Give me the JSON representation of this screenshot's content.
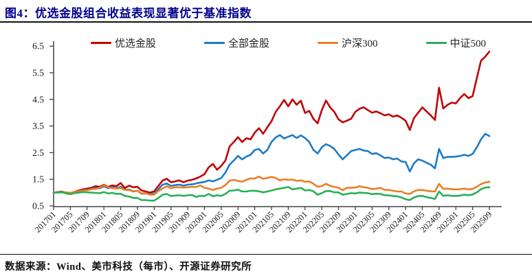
{
  "title": "图4：优选金股组合收益表现显著优于基准指数",
  "footer": {
    "source_label": "数据来源：Wind、美市科技（每市）、开源证券研究所"
  },
  "chart_data": {
    "type": "line",
    "title": "",
    "xlabel": "",
    "ylabel": "",
    "grid": false,
    "legend_position": "top",
    "ylim": [
      0.5,
      6.5
    ],
    "y_ticks": [
      0.5,
      1.5,
      2.5,
      3.5,
      4.5,
      5.5,
      6.5
    ],
    "x_start": "201701",
    "x_interval_months": 1,
    "x_tick_every": 4,
    "x_tick_labels": [
      "201701",
      "201705",
      "201709",
      "201801",
      "201805",
      "201809",
      "201901",
      "201905",
      "201909",
      "202001",
      "202005",
      "202009",
      "202101",
      "202105",
      "202109",
      "202201",
      "202205",
      "202209",
      "202301",
      "202305",
      "202309",
      "202401",
      "202405",
      "202409",
      "202501",
      "202505",
      "202509"
    ],
    "series": [
      {
        "name": "优选金股",
        "color": "#C00000",
        "values": [
          1.0,
          1.02,
          1.04,
          0.98,
          0.95,
          1.03,
          1.08,
          1.12,
          1.15,
          1.18,
          1.24,
          1.22,
          1.3,
          1.22,
          1.27,
          1.24,
          1.36,
          1.17,
          1.26,
          1.2,
          1.22,
          1.08,
          1.04,
          1.0,
          1.05,
          1.25,
          1.45,
          1.52,
          1.39,
          1.42,
          1.46,
          1.39,
          1.45,
          1.48,
          1.53,
          1.6,
          1.69,
          1.95,
          2.08,
          1.86,
          2.0,
          2.2,
          2.73,
          2.9,
          3.08,
          2.9,
          3.04,
          3.0,
          3.25,
          3.42,
          3.21,
          3.45,
          3.68,
          4.03,
          4.24,
          4.48,
          4.24,
          4.5,
          4.3,
          4.45,
          3.99,
          4.07,
          3.77,
          3.6,
          4.1,
          4.46,
          4.2,
          4.03,
          3.75,
          3.64,
          3.7,
          3.77,
          4.03,
          4.15,
          4.2,
          4.1,
          4.0,
          4.05,
          3.98,
          3.9,
          3.94,
          3.85,
          3.9,
          3.81,
          3.7,
          3.35,
          3.8,
          4.0,
          4.2,
          4.05,
          3.9,
          3.73,
          4.94,
          4.16,
          4.29,
          4.38,
          4.35,
          4.55,
          4.7,
          4.55,
          4.62,
          5.3,
          5.95,
          6.1,
          6.3
        ]
      },
      {
        "name": "全部金股",
        "color": "#1B7AC6",
        "values": [
          1.0,
          1.01,
          1.03,
          0.97,
          0.94,
          1.01,
          1.05,
          1.08,
          1.1,
          1.13,
          1.18,
          1.16,
          1.24,
          1.17,
          1.2,
          1.16,
          1.22,
          1.1,
          1.12,
          1.05,
          1.07,
          0.96,
          0.97,
          0.95,
          0.96,
          1.12,
          1.3,
          1.34,
          1.25,
          1.28,
          1.3,
          1.26,
          1.3,
          1.31,
          1.34,
          1.38,
          1.4,
          1.46,
          1.42,
          1.48,
          1.55,
          1.75,
          2.05,
          2.2,
          2.38,
          2.25,
          2.35,
          2.42,
          2.6,
          2.64,
          2.47,
          2.6,
          2.9,
          3.07,
          3.16,
          3.03,
          3.1,
          3.16,
          3.05,
          3.15,
          3.05,
          2.9,
          2.6,
          2.47,
          2.7,
          2.82,
          2.75,
          2.64,
          2.43,
          2.25,
          2.4,
          2.56,
          2.6,
          2.64,
          2.58,
          2.56,
          2.45,
          2.48,
          2.4,
          2.3,
          2.32,
          2.25,
          2.28,
          2.17,
          2.15,
          1.79,
          2.1,
          2.25,
          2.2,
          2.12,
          2.05,
          1.91,
          2.64,
          2.3,
          2.34,
          2.34,
          2.35,
          2.38,
          2.42,
          2.38,
          2.45,
          2.7,
          3.0,
          3.21,
          3.12
        ]
      },
      {
        "name": "沪深300",
        "color": "#ED7D23",
        "values": [
          1.0,
          1.01,
          1.02,
          1.01,
          0.99,
          1.03,
          1.05,
          1.08,
          1.09,
          1.13,
          1.14,
          1.18,
          1.28,
          1.21,
          1.17,
          1.15,
          1.17,
          1.1,
          1.1,
          1.04,
          1.07,
          0.97,
          0.98,
          0.92,
          0.93,
          1.06,
          1.15,
          1.24,
          1.16,
          1.2,
          1.2,
          1.19,
          1.2,
          1.22,
          1.21,
          1.27,
          1.18,
          1.15,
          1.1,
          1.15,
          1.18,
          1.28,
          1.45,
          1.48,
          1.44,
          1.41,
          1.48,
          1.53,
          1.53,
          1.6,
          1.52,
          1.55,
          1.59,
          1.55,
          1.46,
          1.5,
          1.48,
          1.49,
          1.44,
          1.46,
          1.41,
          1.42,
          1.33,
          1.22,
          1.25,
          1.33,
          1.25,
          1.22,
          1.18,
          1.09,
          1.18,
          1.18,
          1.19,
          1.24,
          1.2,
          1.18,
          1.13,
          1.15,
          1.18,
          1.1,
          1.1,
          1.07,
          1.04,
          1.04,
          0.97,
          0.95,
          1.05,
          1.1,
          1.1,
          1.07,
          1.05,
          1.04,
          1.33,
          1.14,
          1.15,
          1.13,
          1.12,
          1.13,
          1.15,
          1.12,
          1.14,
          1.22,
          1.32,
          1.38,
          1.41
        ]
      },
      {
        "name": "中证500",
        "color": "#27AF58",
        "values": [
          1.0,
          1.0,
          1.01,
          0.97,
          0.94,
          0.98,
          1.0,
          1.02,
          1.01,
          1.0,
          0.99,
          0.98,
          1.02,
          0.97,
          0.99,
          0.95,
          0.96,
          0.88,
          0.85,
          0.8,
          0.8,
          0.72,
          0.72,
          0.7,
          0.7,
          0.8,
          0.92,
          0.95,
          0.87,
          0.89,
          0.9,
          0.88,
          0.9,
          0.91,
          0.84,
          0.88,
          0.87,
          0.95,
          0.86,
          0.9,
          0.88,
          0.95,
          1.07,
          1.08,
          1.11,
          1.04,
          1.04,
          1.07,
          1.07,
          1.05,
          1.01,
          1.04,
          1.08,
          1.12,
          1.15,
          1.18,
          1.21,
          1.12,
          1.15,
          1.18,
          1.08,
          1.1,
          1.05,
          0.92,
          0.98,
          1.06,
          1.06,
          1.01,
          1.01,
          0.92,
          0.95,
          0.98,
          0.97,
          1.0,
          0.99,
          0.98,
          0.94,
          0.96,
          0.95,
          0.9,
          0.9,
          0.87,
          0.86,
          0.82,
          0.75,
          0.72,
          0.82,
          0.87,
          0.88,
          0.83,
          0.8,
          0.76,
          1.04,
          0.88,
          0.9,
          0.88,
          0.87,
          0.89,
          0.92,
          0.9,
          0.93,
          1.01,
          1.13,
          1.19,
          1.2
        ]
      }
    ],
    "colors": {
      "title": "#00008B",
      "axis": "#404040",
      "tick_text": "#1a1a1a"
    }
  }
}
